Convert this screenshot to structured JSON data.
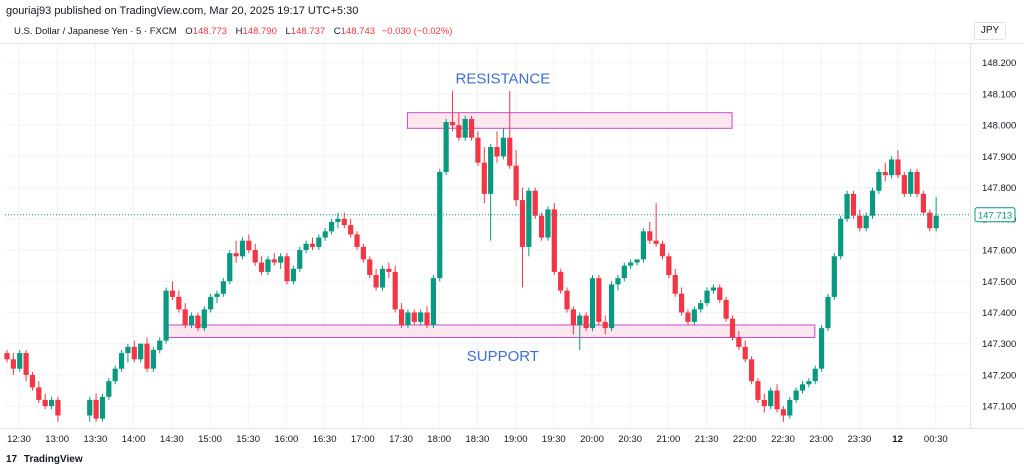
{
  "header": {
    "published": "gouriaj93 published on TradingView.com, Mar 20, 2025 19:17 UTC+5:30",
    "symbol": "U.S. Dollar / Japanese Yen · 5 · FXCM",
    "o_label": "O",
    "o_value": "148.773",
    "h_label": "H",
    "h_value": "148.790",
    "l_label": "L",
    "l_value": "148.737",
    "c_label": "C",
    "c_value": "148.743",
    "change": "−0.030 (−0.02%)",
    "currency": "JPY"
  },
  "footer": {
    "logo": "17",
    "brand": "TradingView"
  },
  "chart_data": {
    "type": "candlestick",
    "ylim": [
      147.03,
      148.26
    ],
    "y_ticks": [
      "148.200",
      "148.100",
      "148.000",
      "147.900",
      "147.800",
      "147.700",
      "147.600",
      "147.500",
      "147.400",
      "147.300",
      "147.200",
      "147.100"
    ],
    "y_tick_values": [
      148.2,
      148.1,
      148.0,
      147.9,
      147.8,
      147.7,
      147.6,
      147.5,
      147.4,
      147.3,
      147.2,
      147.1
    ],
    "x_ticks": [
      "12:30",
      "13:00",
      "13:30",
      "14:00",
      "14:30",
      "15:00",
      "15:30",
      "16:00",
      "16:30",
      "17:00",
      "17:30",
      "18:00",
      "18:30",
      "19:00",
      "19:30",
      "20:00",
      "20:30",
      "21:00",
      "21:30",
      "22:00",
      "22:30",
      "23:00",
      "23:30",
      "12",
      "00:30"
    ],
    "current_price": "147.713",
    "current_value": 147.713,
    "colors": {
      "up": "#089981",
      "down": "#f23645",
      "zone_fill": "#fde7ef",
      "zone_stroke": "#c94bc9",
      "annotation": "#3e6fd8"
    },
    "annotations": [
      {
        "text": "RESISTANCE",
        "anchor_time": "18:50",
        "price": 148.15
      },
      {
        "text": "SUPPORT",
        "anchor_time": "18:50",
        "price": 147.26
      }
    ],
    "zones": [
      {
        "name": "resistance-zone",
        "from": "17:35",
        "to": "21:50",
        "low": 147.99,
        "high": 148.04
      },
      {
        "name": "support-zone",
        "from": "14:25",
        "to": "22:55",
        "low": 147.32,
        "high": 147.36
      }
    ],
    "candles": [
      [
        147.27,
        147.28,
        147.24,
        147.25
      ],
      [
        147.25,
        147.27,
        147.2,
        147.22
      ],
      [
        147.22,
        147.28,
        147.21,
        147.27
      ],
      [
        147.27,
        147.28,
        147.18,
        147.2
      ],
      [
        147.2,
        147.21,
        147.15,
        147.16
      ],
      [
        147.16,
        147.18,
        147.11,
        147.12
      ],
      [
        147.12,
        147.14,
        147.09,
        147.1
      ],
      [
        147.1,
        147.13,
        147.09,
        147.12
      ],
      [
        147.12,
        147.13,
        147.05,
        147.07
      ],
      null,
      null,
      null,
      null,
      [
        147.07,
        147.13,
        147.05,
        147.12
      ],
      [
        147.12,
        147.14,
        147.05,
        147.06
      ],
      [
        147.06,
        147.14,
        147.05,
        147.13
      ],
      [
        147.13,
        147.19,
        147.12,
        147.18
      ],
      [
        147.18,
        147.23,
        147.17,
        147.22
      ],
      [
        147.22,
        147.28,
        147.21,
        147.27
      ],
      [
        147.27,
        147.3,
        147.24,
        147.29
      ],
      [
        147.29,
        147.31,
        147.24,
        147.25
      ],
      [
        147.25,
        147.3,
        147.24,
        147.3
      ],
      [
        147.3,
        147.32,
        147.21,
        147.22
      ],
      [
        147.22,
        147.29,
        147.21,
        147.28
      ],
      [
        147.28,
        147.32,
        147.27,
        147.31
      ],
      [
        147.31,
        147.48,
        147.3,
        147.47
      ],
      [
        147.47,
        147.5,
        147.44,
        147.45
      ],
      [
        147.45,
        147.47,
        147.4,
        147.41
      ],
      [
        147.41,
        147.43,
        147.35,
        147.36
      ],
      [
        147.36,
        147.4,
        147.35,
        147.39
      ],
      [
        147.39,
        147.4,
        147.34,
        147.35
      ],
      [
        147.35,
        147.42,
        147.34,
        147.41
      ],
      [
        147.41,
        147.46,
        147.4,
        147.45
      ],
      [
        147.45,
        147.47,
        147.43,
        147.46
      ],
      [
        147.46,
        147.51,
        147.45,
        147.5
      ],
      [
        147.5,
        147.6,
        147.49,
        147.59
      ],
      [
        147.59,
        147.63,
        147.56,
        147.58
      ],
      [
        147.58,
        147.64,
        147.57,
        147.63
      ],
      [
        147.63,
        147.65,
        147.59,
        147.6
      ],
      [
        147.6,
        147.62,
        147.55,
        147.56
      ],
      [
        147.56,
        147.58,
        147.52,
        147.53
      ],
      [
        147.53,
        147.58,
        147.52,
        147.57
      ],
      [
        147.57,
        147.59,
        147.55,
        147.56
      ],
      [
        147.56,
        147.59,
        147.54,
        147.58
      ],
      [
        147.58,
        147.59,
        147.49,
        147.5
      ],
      [
        147.5,
        147.55,
        147.49,
        147.54
      ],
      [
        147.54,
        147.61,
        147.53,
        147.6
      ],
      [
        147.6,
        147.63,
        147.59,
        147.62
      ],
      [
        147.62,
        147.64,
        147.6,
        147.61
      ],
      [
        147.61,
        147.65,
        147.6,
        147.64
      ],
      [
        147.64,
        147.67,
        147.63,
        147.66
      ],
      [
        147.66,
        147.7,
        147.65,
        147.69
      ],
      [
        147.69,
        147.72,
        147.67,
        147.7
      ],
      [
        147.7,
        147.72,
        147.67,
        147.68
      ],
      [
        147.68,
        147.7,
        147.64,
        147.65
      ],
      [
        147.65,
        147.66,
        147.6,
        147.61
      ],
      [
        147.61,
        147.62,
        147.56,
        147.57
      ],
      [
        147.57,
        147.58,
        147.51,
        147.52
      ],
      [
        147.52,
        147.54,
        147.47,
        147.48
      ],
      [
        147.48,
        147.55,
        147.47,
        147.54
      ],
      [
        147.54,
        147.56,
        147.51,
        147.53
      ],
      [
        147.53,
        147.55,
        147.4,
        147.41
      ],
      [
        147.41,
        147.43,
        147.35,
        147.36
      ],
      [
        147.36,
        147.41,
        147.35,
        147.4
      ],
      [
        147.4,
        147.41,
        147.36,
        147.37
      ],
      [
        147.37,
        147.41,
        147.36,
        147.4
      ],
      [
        147.4,
        147.42,
        147.35,
        147.36
      ],
      [
        147.36,
        147.52,
        147.35,
        147.51
      ],
      [
        147.51,
        147.86,
        147.5,
        147.85
      ],
      [
        147.85,
        148.02,
        147.84,
        148.01
      ],
      [
        148.01,
        148.11,
        147.98,
        148.0
      ],
      [
        148.0,
        148.04,
        147.95,
        147.96
      ],
      [
        147.96,
        148.03,
        147.95,
        148.02
      ],
      [
        148.02,
        148.03,
        147.95,
        147.96
      ],
      [
        147.96,
        147.98,
        147.87,
        147.88
      ],
      [
        147.88,
        147.93,
        147.75,
        147.78
      ],
      [
        147.78,
        147.94,
        147.63,
        147.93
      ],
      [
        147.93,
        147.98,
        147.88,
        147.9
      ],
      [
        147.9,
        147.99,
        147.89,
        147.96
      ],
      [
        147.96,
        148.11,
        147.86,
        147.87
      ],
      [
        147.87,
        147.92,
        147.74,
        147.76
      ],
      [
        147.76,
        147.8,
        147.48,
        147.61
      ],
      [
        147.61,
        147.8,
        147.58,
        147.79
      ],
      [
        147.79,
        147.8,
        147.7,
        147.71
      ],
      [
        147.71,
        147.72,
        147.63,
        147.64
      ],
      [
        147.64,
        147.74,
        147.63,
        147.73
      ],
      [
        147.73,
        147.75,
        147.52,
        147.53
      ],
      [
        147.53,
        147.54,
        147.46,
        147.47
      ],
      [
        147.47,
        147.48,
        147.4,
        147.41
      ],
      [
        147.41,
        147.42,
        147.33,
        147.36
      ],
      [
        147.36,
        147.4,
        147.28,
        147.39
      ],
      [
        147.39,
        147.4,
        147.34,
        147.35
      ],
      [
        147.35,
        147.52,
        147.34,
        147.51
      ],
      [
        147.51,
        147.52,
        147.36,
        147.37
      ],
      [
        147.37,
        147.39,
        147.33,
        147.35
      ],
      [
        147.35,
        147.5,
        147.34,
        147.49
      ],
      [
        147.49,
        147.52,
        147.47,
        147.51
      ],
      [
        147.51,
        147.56,
        147.5,
        147.55
      ],
      [
        147.55,
        147.57,
        147.54,
        147.56
      ],
      [
        147.56,
        147.57,
        147.55,
        147.57
      ],
      [
        147.57,
        147.67,
        147.56,
        147.66
      ],
      [
        147.66,
        147.69,
        147.62,
        147.63
      ],
      [
        147.63,
        147.75,
        147.61,
        147.62
      ],
      [
        147.62,
        147.63,
        147.57,
        147.58
      ],
      [
        147.58,
        147.59,
        147.51,
        147.52
      ],
      [
        147.52,
        147.54,
        147.45,
        147.46
      ],
      [
        147.46,
        147.48,
        147.39,
        147.4
      ],
      [
        147.4,
        147.41,
        147.36,
        147.37
      ],
      [
        147.37,
        147.42,
        147.36,
        147.41
      ],
      [
        147.41,
        147.44,
        147.4,
        147.43
      ],
      [
        147.43,
        147.48,
        147.42,
        147.47
      ],
      [
        147.47,
        147.49,
        147.46,
        147.48
      ],
      [
        147.48,
        147.49,
        147.43,
        147.44
      ],
      [
        147.44,
        147.45,
        147.37,
        147.38
      ],
      [
        147.38,
        147.39,
        147.31,
        147.32
      ],
      [
        147.32,
        147.34,
        147.28,
        147.29
      ],
      [
        147.29,
        147.31,
        147.24,
        147.25
      ],
      [
        147.25,
        147.26,
        147.17,
        147.18
      ],
      [
        147.18,
        147.19,
        147.11,
        147.12
      ],
      [
        147.12,
        147.14,
        147.08,
        147.1
      ],
      [
        147.1,
        147.16,
        147.09,
        147.15
      ],
      [
        147.15,
        147.17,
        147.08,
        147.09
      ],
      [
        147.09,
        147.1,
        147.05,
        147.07
      ],
      [
        147.07,
        147.13,
        147.06,
        147.12
      ],
      [
        147.12,
        147.16,
        147.11,
        147.15
      ],
      [
        147.15,
        147.18,
        147.14,
        147.17
      ],
      [
        147.17,
        147.19,
        147.16,
        147.18
      ],
      [
        147.18,
        147.23,
        147.17,
        147.22
      ],
      [
        147.22,
        147.36,
        147.21,
        147.35
      ],
      [
        147.35,
        147.46,
        147.34,
        147.45
      ],
      [
        147.45,
        147.59,
        147.44,
        147.58
      ],
      [
        147.58,
        147.71,
        147.57,
        147.7
      ],
      [
        147.7,
        147.79,
        147.69,
        147.78
      ],
      [
        147.78,
        147.79,
        147.7,
        147.71
      ],
      [
        147.71,
        147.73,
        147.66,
        147.67
      ],
      [
        147.67,
        147.72,
        147.66,
        147.71
      ],
      [
        147.71,
        147.8,
        147.7,
        147.79
      ],
      [
        147.79,
        147.86,
        147.78,
        147.85
      ],
      [
        147.85,
        147.88,
        147.82,
        147.84
      ],
      [
        147.84,
        147.9,
        147.83,
        147.89
      ],
      [
        147.89,
        147.92,
        147.83,
        147.84
      ],
      [
        147.84,
        147.85,
        147.77,
        147.78
      ],
      [
        147.78,
        147.86,
        147.77,
        147.85
      ],
      [
        147.85,
        147.86,
        147.77,
        147.78
      ],
      [
        147.78,
        147.79,
        147.71,
        147.72
      ],
      [
        147.72,
        147.73,
        147.66,
        147.67
      ],
      [
        147.67,
        147.77,
        147.66,
        147.71
      ]
    ]
  }
}
